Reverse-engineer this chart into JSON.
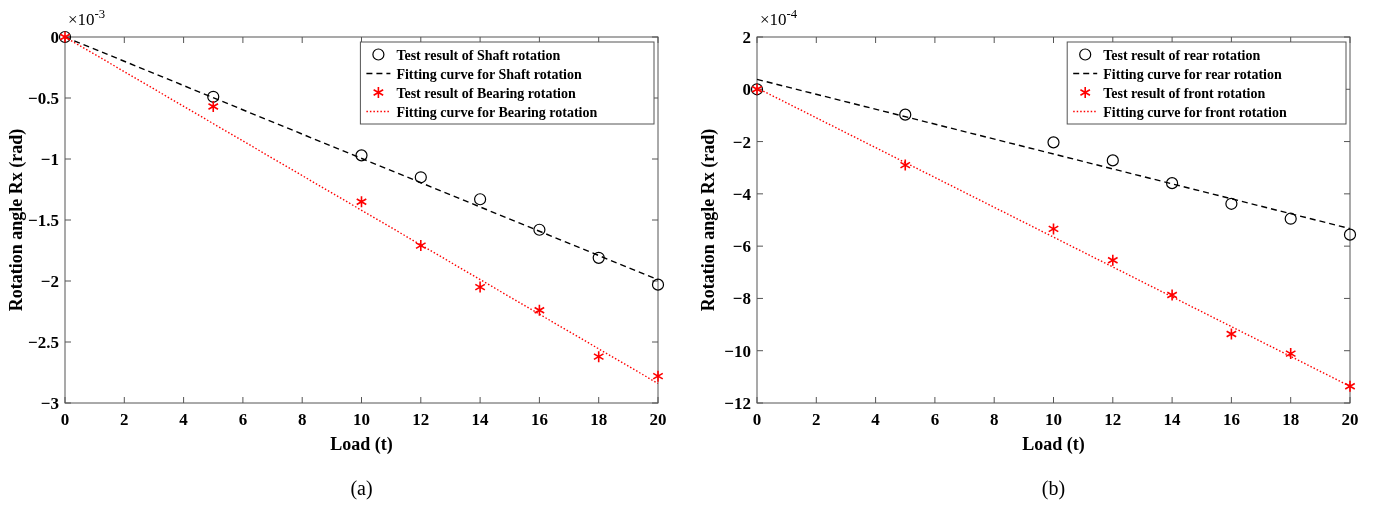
{
  "chart_data": [
    {
      "type": "scatter",
      "xlabel": "Load  (t)",
      "ylabel": "Rotation angle Rx (rad)",
      "xlim": [
        0,
        20
      ],
      "xticks": [
        0,
        2,
        4,
        6,
        8,
        10,
        12,
        14,
        16,
        18,
        20
      ],
      "ylim": [
        -3,
        0
      ],
      "yticks": [
        -3,
        -2.5,
        -2,
        -1.5,
        -1,
        -0.5,
        0
      ],
      "grid": false,
      "legend": "top right",
      "annotations": [
        "×10$^{-3}$",
        "(a)"
      ],
      "series": [
        {
          "name": "Test result of Shaft rotation",
          "type": "scatter",
          "color": "#000000",
          "marker": "circle",
          "x": [
            0,
            5,
            10,
            12,
            14,
            16,
            18,
            20
          ],
          "values": [
            0,
            -0.49,
            -0.97,
            -1.15,
            -1.33,
            -1.58,
            -1.81,
            -2.03
          ]
        },
        {
          "name": "Fitting curve for Shaft rotation",
          "type": "line",
          "color": "#000000",
          "marker": "none",
          "line_style": "dashed",
          "x": [
            0,
            20
          ],
          "values": [
            0,
            -1.99
          ]
        },
        {
          "name": "Test result of Bearing rotation",
          "type": "scatter",
          "color": "#ff0000",
          "marker": "cross",
          "x": [
            0,
            5,
            10,
            12,
            14,
            16,
            18,
            20
          ],
          "values": [
            0,
            -0.57,
            -1.35,
            -1.71,
            -2.05,
            -2.24,
            -2.62,
            -2.78
          ]
        },
        {
          "name": "Fitting curve for Bearing rotation",
          "type": "line",
          "color": "#ff0000",
          "marker": "none",
          "line_style": "dotted",
          "x": [
            0,
            20
          ],
          "values": [
            0,
            -2.84
          ]
        }
      ]
    },
    {
      "type": "scatter",
      "xlabel": "Load  (t)",
      "ylabel": "Rotation angle Rx (rad)",
      "xlim": [
        0,
        20
      ],
      "xticks": [
        0,
        2,
        4,
        6,
        8,
        10,
        12,
        14,
        16,
        18,
        20
      ],
      "ylim": [
        -12,
        2
      ],
      "yticks": [
        -12,
        -10,
        -8,
        -6,
        -4,
        -2,
        0,
        2
      ],
      "grid": false,
      "legend": "top right",
      "annotations": [
        "×10$^{-4}$",
        "(b)"
      ],
      "series": [
        {
          "name": "Test result of rear rotation",
          "type": "scatter",
          "color": "#000000",
          "marker": "circle",
          "x": [
            0,
            5,
            10,
            12,
            14,
            16,
            18,
            20
          ],
          "values": [
            0,
            -0.97,
            -2.03,
            -2.72,
            -3.59,
            -4.38,
            -4.95,
            -5.56
          ]
        },
        {
          "name": "Fitting curve for rear rotation",
          "type": "line",
          "color": "#000000",
          "marker": "none",
          "line_style": "dashed",
          "x": [
            0,
            20
          ],
          "values": [
            0.38,
            -5.33
          ]
        },
        {
          "name": "Test result of front rotation",
          "type": "scatter",
          "color": "#ff0000",
          "marker": "cross",
          "x": [
            0,
            5,
            10,
            12,
            14,
            16,
            18,
            20
          ],
          "values": [
            0,
            -2.9,
            -5.34,
            -6.54,
            -7.87,
            -9.36,
            -10.11,
            -11.36
          ]
        },
        {
          "name": "Fitting curve for front rotation",
          "type": "line",
          "color": "#ff0000",
          "marker": "none",
          "line_style": "dotted",
          "x": [
            0,
            20
          ],
          "values": [
            0.05,
            -11.36
          ]
        }
      ]
    }
  ]
}
